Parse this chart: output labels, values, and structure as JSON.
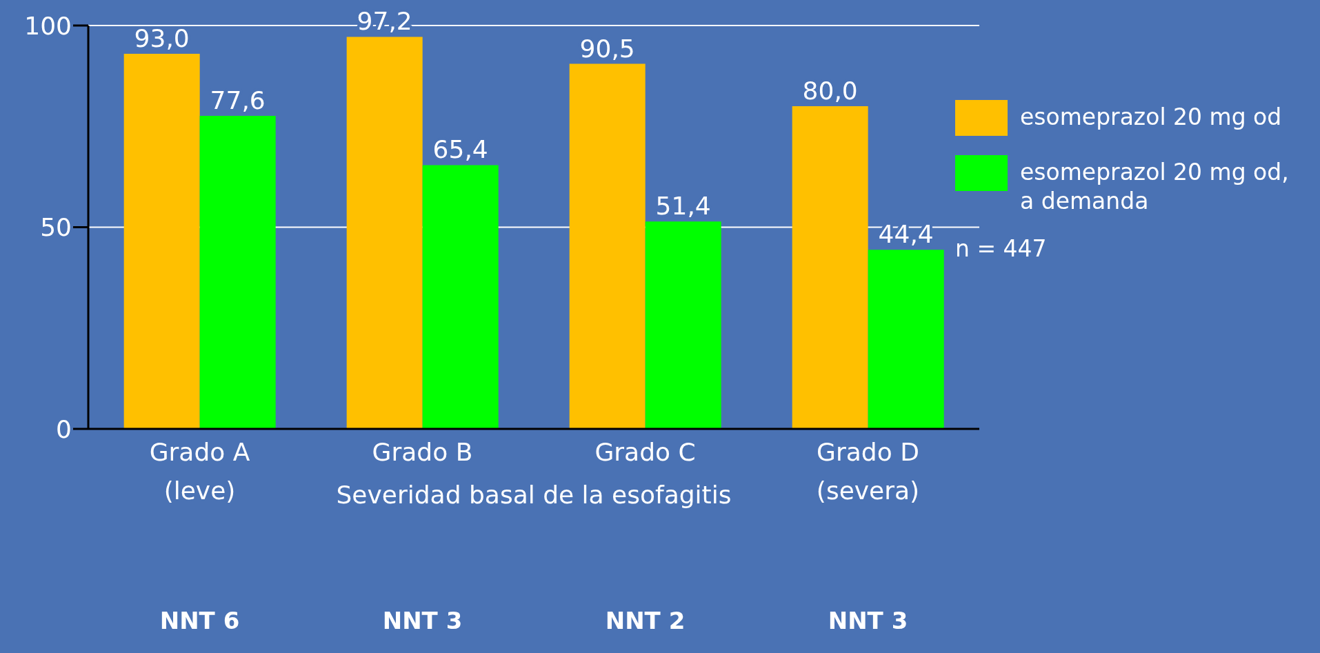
{
  "chart_data": {
    "type": "bar",
    "categories": [
      "Grado A\n(leve)",
      "Grado B",
      "Grado C",
      "Grado D\n(severa)"
    ],
    "xlabel": "Severidad basal de la esofagitis",
    "series": [
      {
        "name": "esomeprazol 20 mg od",
        "color": "#ffc000",
        "values": [
          93.0,
          97.2,
          90.5,
          80.0
        ],
        "value_labels": [
          "93,0",
          "97,2",
          "90,5",
          "80,0"
        ]
      },
      {
        "name": "esomeprazol 20 mg od, a demanda",
        "color": "#00ff00",
        "values": [
          77.6,
          65.4,
          51.4,
          44.4
        ],
        "value_labels": [
          "77,6",
          "65,4",
          "51,4",
          "44,4"
        ]
      }
    ],
    "ylim": [
      0,
      100
    ],
    "yticks": [
      0,
      50,
      100
    ],
    "grid": "y",
    "legend": "right",
    "annotations": [
      "NNT 6",
      "NNT 3",
      "NNT 2",
      "NNT 3",
      "n = 447"
    ]
  }
}
